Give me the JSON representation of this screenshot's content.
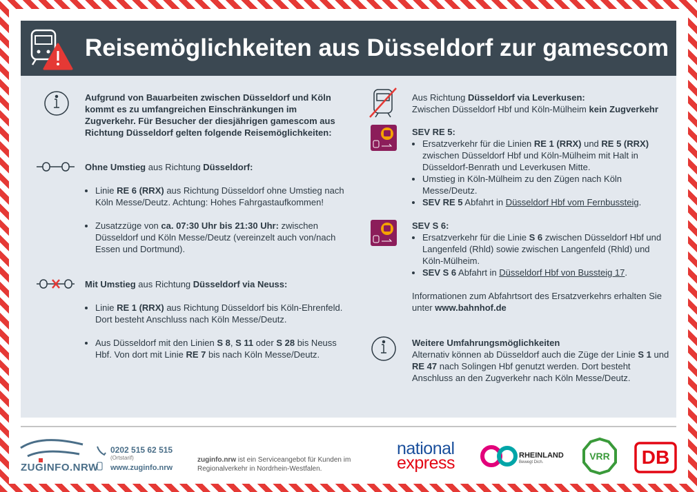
{
  "header": {
    "title": "Reisemöglichkeiten aus Düsseldorf zur gamescom"
  },
  "left": {
    "blocks": [
      {
        "text": [
          {
            "text": "Aufgrund von Bauarbeiten zwischen Düsseldorf und Köln kommt es zu umfangreichen Einschränkungen im Zugverkehr. Für Besucher der diesjährigen gamescom aus Richtung Düsseldorf gelten folgende Reisemöglichkeiten:",
            "bold": true
          }
        ]
      },
      {
        "heading": [
          {
            "text": "Ohne Umstieg",
            "bold": true
          },
          {
            "text": " aus Richtung "
          },
          {
            "text": "Düsseldorf:",
            "bold": true
          }
        ],
        "bullets": [
          [
            {
              "text": "Linie "
            },
            {
              "text": "RE 6 (RRX)",
              "bold": true
            },
            {
              "text": " aus Richtung Düsseldorf ohne Umstieg nach Köln Messe/Deutz. Achtung: Hohes Fahrgastaufkommen!"
            }
          ],
          [
            {
              "text": "Zusatzzüge von "
            },
            {
              "text": "ca. 07:30 Uhr bis 21:30 Uhr:",
              "bold": true
            },
            {
              "text": " zwischen Düsseldorf und Köln Messe/Deutz (vereinzelt auch von/nach Essen und Dortmund)."
            }
          ]
        ]
      },
      {
        "heading": [
          {
            "text": "Mit Umstieg",
            "bold": true
          },
          {
            "text": " aus Richtung "
          },
          {
            "text": "Düsseldorf via Neuss:",
            "bold": true
          }
        ],
        "bullets": [
          [
            {
              "text": "Linie "
            },
            {
              "text": "RE 1 (RRX)",
              "bold": true
            },
            {
              "text": " aus Richtung Düsseldorf bis Köln-Ehrenfeld. Dort besteht Anschluss nach Köln Messe/Deutz."
            }
          ],
          [
            {
              "text": "Aus Düsseldorf mit den Linien "
            },
            {
              "text": "S 8",
              "bold": true
            },
            {
              "text": ", "
            },
            {
              "text": "S 11",
              "bold": true
            },
            {
              "text": " oder "
            },
            {
              "text": "S 28",
              "bold": true
            },
            {
              "text": " bis Neuss Hbf. Von dort mit Linie "
            },
            {
              "text": "RE 7",
              "bold": true
            },
            {
              "text": " bis nach Köln Messe/Deutz."
            }
          ]
        ]
      }
    ]
  },
  "right": {
    "blocks": [
      {
        "heading": [
          {
            "text": "Aus Richtung "
          },
          {
            "text": "Düsseldorf via Leverkusen:",
            "bold": true
          }
        ],
        "text": [
          {
            "text": "Zwischen Düsseldorf Hbf und Köln-Mülheim "
          },
          {
            "text": "kein Zugverkehr",
            "bold": true
          }
        ]
      },
      {
        "heading": [
          {
            "text": "SEV RE 5:",
            "bold": true
          }
        ],
        "bullets": [
          [
            {
              "text": "Ersatzverkehr für die Linien "
            },
            {
              "text": "RE 1 (RRX)",
              "bold": true
            },
            {
              "text": " und "
            },
            {
              "text": "RE 5 (RRX)",
              "bold": true
            },
            {
              "text": " zwischen Düsseldorf Hbf und Köln-Mülheim mit Halt in Düsseldorf-Benrath und Leverkusen Mitte."
            }
          ],
          [
            {
              "text": "Umstieg in Köln-Mülheim zu den Zügen nach Köln Messe/Deutz."
            }
          ],
          [
            {
              "text": "SEV RE 5",
              "bold": true
            },
            {
              "text": " Abfahrt in "
            },
            {
              "text": "Düsseldorf Hbf vom Fernbussteig",
              "underline": true
            },
            {
              "text": "."
            }
          ]
        ]
      },
      {
        "heading": [
          {
            "text": "SEV S 6:",
            "bold": true
          }
        ],
        "bullets": [
          [
            {
              "text": "Ersatzverkehr für die Linie "
            },
            {
              "text": "S 6",
              "bold": true
            },
            {
              "text": " zwischen Düsseldorf Hbf und Langenfeld (Rhld) sowie zwischen Langenfeld (Rhld) und Köln-Mülheim."
            }
          ],
          [
            {
              "text": "SEV S 6",
              "bold": true
            },
            {
              "text": " Abfahrt in "
            },
            {
              "text": "Düsseldorf Hbf von Bussteig 17",
              "underline": true
            },
            {
              "text": "."
            }
          ]
        ]
      },
      {
        "text": [
          {
            "text": "Informationen zum Abfahrtsort des Ersatzverkehrs erhalten Sie unter "
          },
          {
            "text": "www.bahnhof.de",
            "bold": true
          }
        ]
      },
      {
        "heading": [
          {
            "text": "Weitere Umfahrungsmöglichkeiten",
            "bold": true
          }
        ],
        "text": [
          {
            "text": "Alternativ können ab Düsseldorf auch die Züge der Linie "
          },
          {
            "text": "S 1",
            "bold": true
          },
          {
            "text": " und "
          },
          {
            "text": "RE 47",
            "bold": true
          },
          {
            "text": " nach Solingen Hbf genutzt werden. Dort besteht Anschluss an den Zugverkehr nach Köln Messe/Deutz."
          }
        ]
      }
    ]
  },
  "footer": {
    "brand": "ZUGINFO.NRW",
    "phone": "0202 515 62 515",
    "phone_note": "(Ortstarif)",
    "web": "www.zuginfo.nrw",
    "statement": [
      {
        "text": "zuginfo.nrw",
        "bold": true
      },
      {
        "text": " ist ein Serviceangebot für Kunden im Regionalverkehr in Nordrhein-Westfalen."
      }
    ],
    "logos": {
      "ne1": "national",
      "ne2": "express",
      "go": "GO",
      "rheinland": "RHEINLAND",
      "go_tag": "Bewegt Dich.",
      "vrr": "VRR",
      "db": "DB"
    }
  }
}
